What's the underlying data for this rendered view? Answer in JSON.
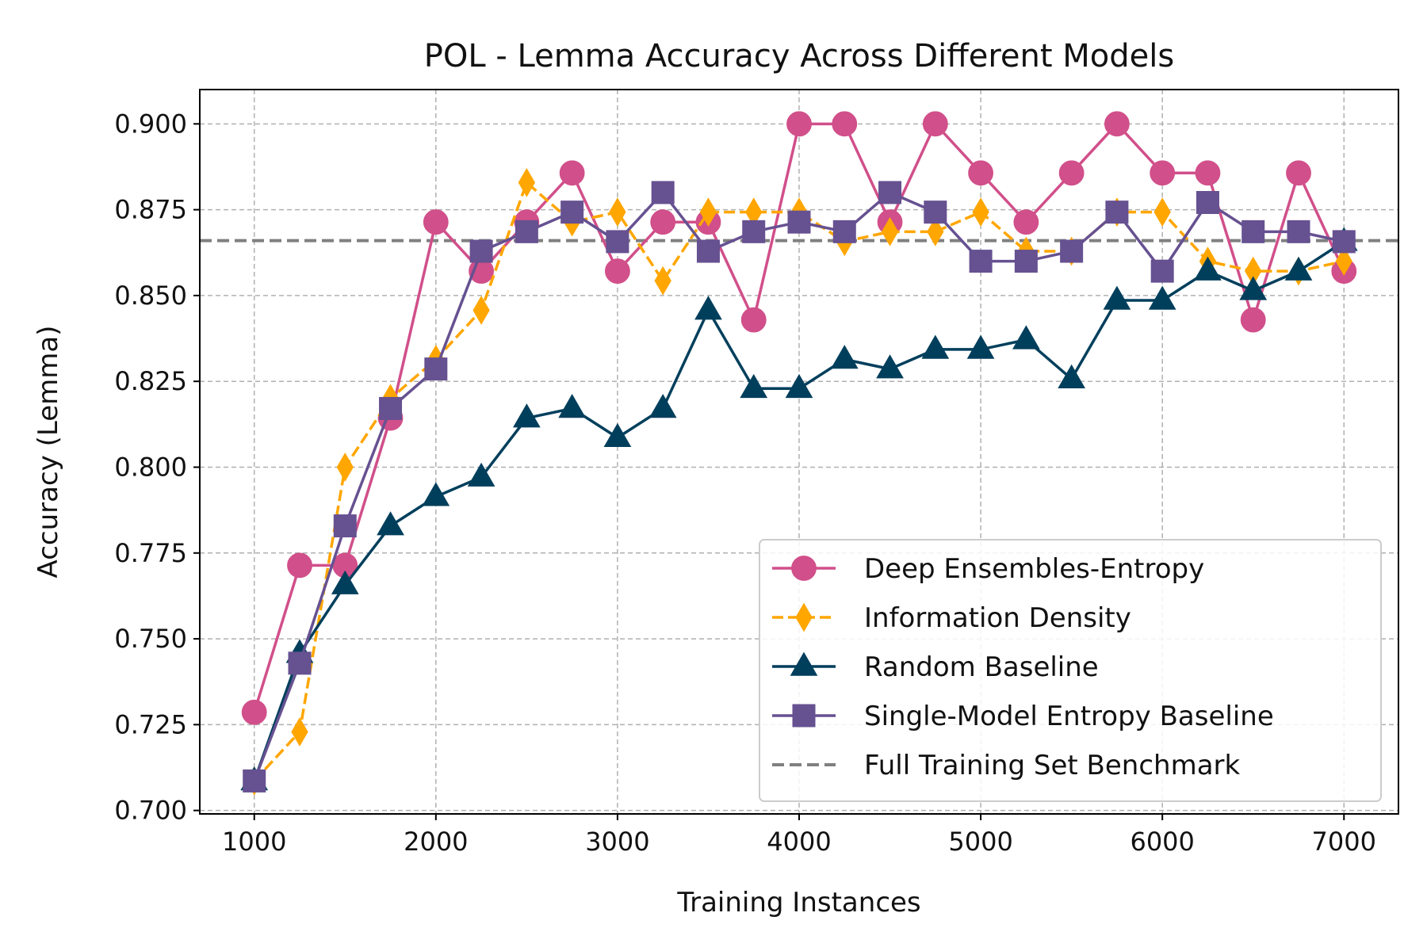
{
  "chart_data": {
    "type": "line",
    "title": "POL - Lemma Accuracy Across Different Models",
    "xlabel": "Training Instances",
    "ylabel": "Accuracy (Lemma)",
    "xlim": [
      700,
      7300
    ],
    "ylim": [
      0.699,
      0.91
    ],
    "xticks": [
      1000,
      2000,
      3000,
      4000,
      5000,
      6000,
      7000
    ],
    "yticks": [
      0.7,
      0.725,
      0.75,
      0.775,
      0.8,
      0.825,
      0.85,
      0.875,
      0.9
    ],
    "ytick_labels": [
      "0.700",
      "0.725",
      "0.750",
      "0.775",
      "0.800",
      "0.825",
      "0.850",
      "0.875",
      "0.900"
    ],
    "grid": true,
    "legend_position": "bottom-right",
    "x": [
      1000,
      1250,
      1500,
      1750,
      2000,
      2250,
      2500,
      2750,
      3000,
      3250,
      3500,
      3750,
      4000,
      4250,
      4500,
      4750,
      5000,
      5250,
      5500,
      5750,
      6000,
      6250,
      6500,
      6750,
      7000
    ],
    "series": [
      {
        "name": "Deep Ensembles-Entropy",
        "color": "#d14f8a",
        "marker": "circle",
        "dashed": false,
        "values": [
          0.7286,
          0.7714,
          0.7714,
          0.8143,
          0.8714,
          0.8571,
          0.8714,
          0.8857,
          0.8571,
          0.8714,
          0.8714,
          0.8429,
          0.9,
          0.9,
          0.8714,
          0.9,
          0.8857,
          0.8714,
          0.8857,
          0.9,
          0.8857,
          0.8857,
          0.8429,
          0.8857,
          0.8571
        ]
      },
      {
        "name": "Information Density",
        "color": "#ffa600",
        "marker": "thin-diamond",
        "dashed": true,
        "values": [
          0.7086,
          0.7229,
          0.8,
          0.82,
          0.8314,
          0.8457,
          0.8829,
          0.8714,
          0.8743,
          0.8543,
          0.8743,
          0.8743,
          0.8743,
          0.8657,
          0.8686,
          0.8686,
          0.8743,
          0.8629,
          0.8629,
          0.8743,
          0.8743,
          0.86,
          0.8571,
          0.8571,
          0.86
        ]
      },
      {
        "name": "Random Baseline",
        "color": "#003f5c",
        "marker": "triangle",
        "dashed": false,
        "values": [
          0.7086,
          0.7457,
          0.7657,
          0.7829,
          0.7914,
          0.7971,
          0.8143,
          0.8171,
          0.8086,
          0.8171,
          0.8457,
          0.8229,
          0.8229,
          0.8314,
          0.8286,
          0.8343,
          0.8343,
          0.8371,
          0.8257,
          0.8486,
          0.8486,
          0.8571,
          0.8514,
          0.8571,
          0.8657
        ]
      },
      {
        "name": "Single-Model Entropy Baseline",
        "color": "#665191",
        "marker": "square",
        "dashed": false,
        "values": [
          0.7086,
          0.7429,
          0.7829,
          0.8171,
          0.8286,
          0.8629,
          0.8686,
          0.8743,
          0.8657,
          0.88,
          0.8629,
          0.8686,
          0.8714,
          0.8686,
          0.88,
          0.8743,
          0.86,
          0.86,
          0.8629,
          0.8743,
          0.8571,
          0.8771,
          0.8686,
          0.8686,
          0.8657
        ]
      }
    ],
    "benchmark": {
      "name": "Full Training Set Benchmark",
      "value": 0.866,
      "color": "#808080"
    }
  }
}
